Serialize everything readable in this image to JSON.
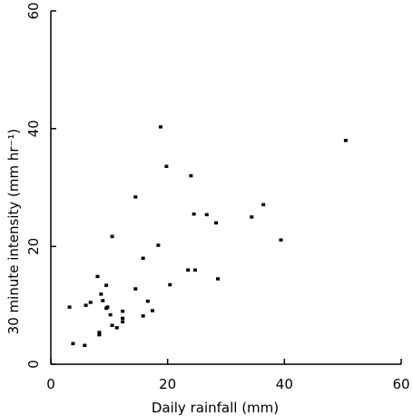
{
  "chart_data": {
    "type": "scatter",
    "title": "",
    "xlabel": "Daily rainfall (mm)",
    "ylabel": "30 minute intensity (mm hr⁻¹)",
    "xlim": [
      0,
      60
    ],
    "ylim": [
      0,
      60
    ],
    "xticks": [
      0,
      20,
      40,
      60
    ],
    "yticks": [
      0,
      20,
      40,
      60
    ],
    "xtick_labels": [
      "0",
      "20",
      "40",
      "60"
    ],
    "ytick_labels": [
      "0",
      "20",
      "40",
      "60"
    ],
    "grid": false,
    "marker_color": "#000000",
    "points": [
      [
        3.2,
        9.7
      ],
      [
        3.8,
        3.5
      ],
      [
        5.8,
        3.2
      ],
      [
        6.0,
        10.0
      ],
      [
        6.8,
        10.5
      ],
      [
        8.0,
        14.9
      ],
      [
        8.3,
        5.4
      ],
      [
        8.3,
        5.0
      ],
      [
        8.6,
        11.9
      ],
      [
        8.9,
        10.8
      ],
      [
        9.5,
        13.4
      ],
      [
        9.5,
        9.5
      ],
      [
        9.7,
        9.7
      ],
      [
        10.2,
        8.4
      ],
      [
        10.5,
        6.6
      ],
      [
        10.5,
        21.7
      ],
      [
        11.3,
        6.2
      ],
      [
        12.3,
        7.2
      ],
      [
        12.3,
        7.8
      ],
      [
        12.3,
        9.0
      ],
      [
        14.5,
        12.8
      ],
      [
        14.5,
        28.4
      ],
      [
        15.8,
        8.2
      ],
      [
        15.8,
        18.0
      ],
      [
        16.6,
        10.7
      ],
      [
        17.4,
        9.1
      ],
      [
        18.4,
        20.2
      ],
      [
        18.8,
        40.3
      ],
      [
        19.8,
        33.6
      ],
      [
        20.4,
        13.5
      ],
      [
        23.5,
        16.0
      ],
      [
        24.0,
        32.0
      ],
      [
        24.5,
        25.5
      ],
      [
        24.7,
        16.0
      ],
      [
        26.7,
        25.4
      ],
      [
        28.3,
        24.0
      ],
      [
        28.6,
        14.5
      ],
      [
        34.4,
        25.0
      ],
      [
        36.4,
        27.1
      ],
      [
        39.4,
        21.1
      ],
      [
        50.5,
        38.0
      ]
    ]
  }
}
